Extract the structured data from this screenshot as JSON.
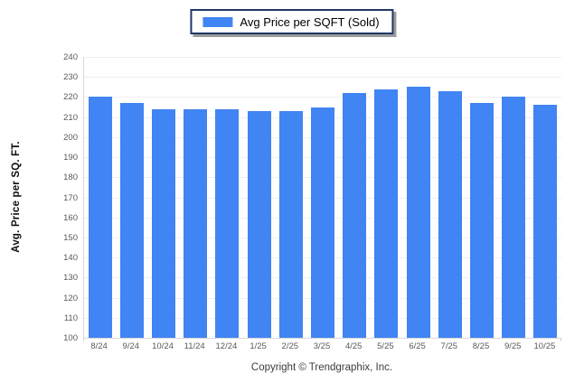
{
  "legend": {
    "label": "Avg Price per SQFT (Sold)",
    "swatch_color": "#4184f3"
  },
  "footer": {
    "copyright": "Copyright © Trendgraphix, Inc."
  },
  "chart_data": {
    "type": "bar",
    "title": "",
    "xlabel": "",
    "ylabel": "Avg. Price per SQ. FT.",
    "series_name": "Avg Price per SQFT (Sold)",
    "categories": [
      "8/24",
      "9/24",
      "10/24",
      "11/24",
      "12/24",
      "1/25",
      "2/25",
      "3/25",
      "4/25",
      "5/25",
      "6/25",
      "7/25",
      "8/25",
      "9/25",
      "10/25"
    ],
    "values": [
      220,
      217,
      214,
      214,
      214,
      213,
      213,
      215,
      222,
      224,
      225,
      223,
      217,
      220,
      216
    ],
    "ylim": [
      100,
      240
    ],
    "ytick_step": 10,
    "grid": true,
    "legend_position": "top-center",
    "bar_color": "#4184f3",
    "gridline_color": "#efefef",
    "axis_color": "#d8d8d8",
    "tick_label_color": "#595959"
  }
}
